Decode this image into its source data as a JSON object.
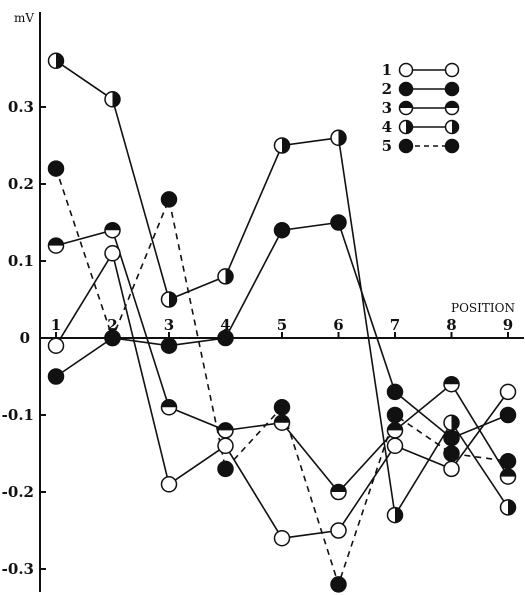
{
  "chart_data": {
    "type": "line",
    "ylabel": "mV",
    "xlabel": "POSITION",
    "y_tick_labels": [
      {
        "v": 0.3,
        "label": "0.3"
      },
      {
        "v": 0.2,
        "label": "0.2"
      },
      {
        "v": 0.1,
        "label": "0.1"
      },
      {
        "v": 0,
        "label": "0"
      },
      {
        "v": -0.1,
        "label": "-0.1"
      },
      {
        "v": -0.2,
        "label": "-0.2"
      },
      {
        "v": -0.3,
        "label": "-0.3"
      }
    ],
    "x_tick_labels": [
      "1",
      "2",
      "3",
      "4",
      "5",
      "6",
      "7",
      "8",
      "9"
    ],
    "xlim": [
      1,
      9
    ],
    "ylim": [
      -0.37,
      0.4
    ],
    "series": [
      {
        "name": "1",
        "marker": "open",
        "line": "solid",
        "segments": [
          [
            [
              1,
              -0.01
            ],
            [
              2,
              0.11
            ],
            [
              3,
              -0.19
            ],
            [
              4,
              -0.14
            ],
            [
              5,
              -0.26
            ],
            [
              6,
              -0.25
            ],
            [
              7,
              -0.14
            ],
            [
              8,
              -0.17
            ],
            [
              9,
              -0.07
            ]
          ]
        ]
      },
      {
        "name": "2",
        "marker": "filled",
        "line": "solid",
        "segments": [
          [
            [
              1,
              -0.05
            ],
            [
              2,
              0.0
            ],
            [
              3,
              -0.01
            ],
            [
              4,
              0.0
            ],
            [
              5,
              0.14
            ],
            [
              6,
              0.15
            ],
            [
              7,
              -0.07
            ],
            [
              8,
              -0.13
            ],
            [
              9,
              -0.1
            ]
          ]
        ]
      },
      {
        "name": "3",
        "marker": "half-horizontal",
        "line": "solid",
        "segments": [
          [
            [
              1,
              0.12
            ],
            [
              2,
              0.14
            ],
            [
              3,
              -0.09
            ],
            [
              4,
              -0.12
            ],
            [
              5,
              -0.11
            ],
            [
              6,
              -0.2
            ],
            [
              7,
              -0.12
            ],
            [
              8,
              -0.06
            ],
            [
              9,
              -0.18
            ]
          ]
        ]
      },
      {
        "name": "4",
        "marker": "half-vertical",
        "line": "solid",
        "segments": [
          [
            [
              1,
              0.36
            ],
            [
              2,
              0.31
            ],
            [
              3,
              0.05
            ],
            [
              4,
              0.08
            ],
            [
              5,
              0.25
            ],
            [
              6,
              0.26
            ],
            [
              7,
              -0.23
            ],
            [
              8,
              -0.11
            ],
            [
              9,
              -0.22
            ]
          ]
        ]
      },
      {
        "name": "5",
        "marker": "filled",
        "line": "dashed",
        "segments": [
          [
            [
              1,
              0.22
            ],
            [
              2,
              0.0
            ],
            [
              3,
              0.18
            ],
            [
              4,
              -0.17
            ],
            [
              5,
              -0.09
            ],
            [
              6,
              -0.32
            ],
            [
              7,
              -0.1
            ],
            [
              8,
              -0.15
            ],
            [
              9,
              -0.16
            ]
          ]
        ]
      }
    ]
  }
}
